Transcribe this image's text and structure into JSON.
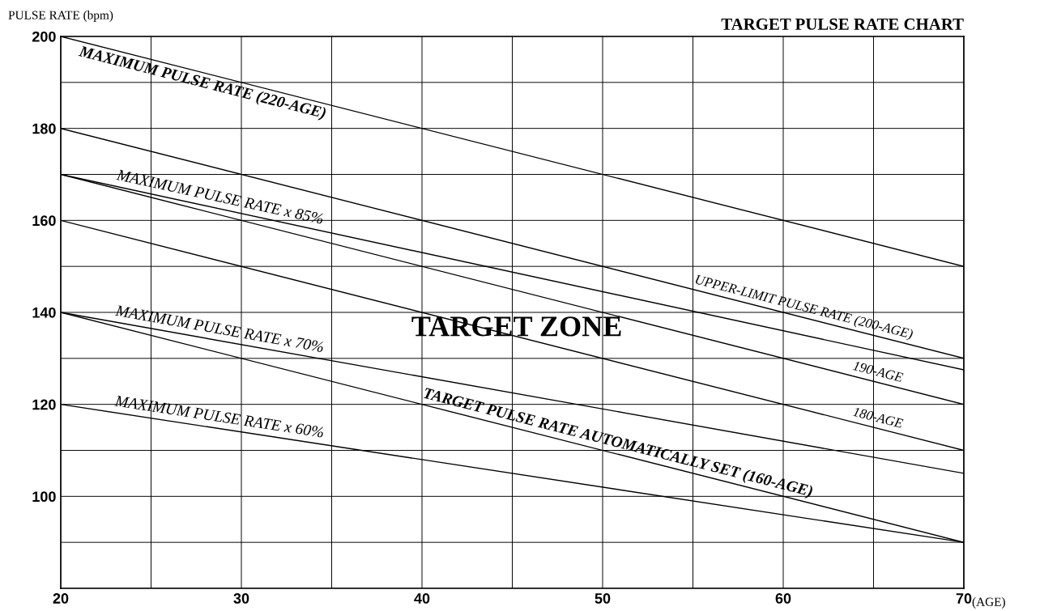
{
  "chart_data": {
    "type": "line",
    "title": "TARGET PULSE RATE CHART",
    "xlabel": "(AGE)",
    "ylabel": "PULSE RATE (bpm)",
    "x": [
      20,
      70
    ],
    "series": [
      {
        "color": "#000000",
        "values": [
          200,
          150
        ]
      },
      {
        "color": "#000000",
        "values": [
          180,
          130
        ]
      },
      {
        "color": "#000000",
        "values": [
          170,
          120
        ]
      },
      {
        "color": "#000000",
        "values": [
          160,
          110
        ]
      },
      {
        "color": "#000000",
        "values": [
          170,
          127.5
        ]
      },
      {
        "color": "#000000",
        "values": [
          140,
          105
        ]
      },
      {
        "color": "#000000",
        "values": [
          120,
          90
        ]
      },
      {
        "color": "#000000",
        "values": [
          140,
          90
        ]
      }
    ],
    "xlim": [
      20,
      70
    ],
    "ylim": [
      80,
      200
    ],
    "xticks": [
      20,
      {
        "value": 25,
        "label": null
      },
      30,
      {
        "value": 35,
        "label": null
      },
      40,
      {
        "value": 45,
        "label": null
      },
      50,
      {
        "value": 55,
        "label": null
      },
      60,
      {
        "value": 65,
        "label": null
      },
      70
    ],
    "yticks": [
      {
        "value": 80,
        "label": null
      },
      {
        "value": 90,
        "label": null
      },
      100,
      {
        "value": 110,
        "label": null
      },
      120,
      {
        "value": 130,
        "label": null
      },
      140,
      {
        "value": 150,
        "label": null
      },
      160,
      {
        "value": 170,
        "label": null
      },
      180,
      {
        "value": 190,
        "label": null
      },
      200
    ],
    "grid": true,
    "marker": "none",
    "line_style": "solid",
    "annotations": [
      {
        "text": "MAXIMUM PULSE RATE (220-AGE)",
        "x": 28,
        "y": 192
      },
      {
        "text": "MAXIMUM PULSE RATE x 85%",
        "x": 28.7,
        "y": 162.6
      },
      {
        "text": "UPPER-LIMIT PULSE RATE (200-AGE)",
        "x": 61,
        "y": 139
      },
      {
        "text": "190-AGE",
        "x": 65.1,
        "y": 124.9
      },
      {
        "text": "180-AGE",
        "x": 65.1,
        "y": 114.9
      },
      {
        "text": "MAXIMUM PULSE RATE x 70%",
        "x": 28.7,
        "y": 133.9
      },
      {
        "text": "TARGET PULSE RATE AUTOMATICALLY SET (160-AGE)",
        "x": 50.7,
        "y": 109.3
      },
      {
        "text": "MAXIMUM PULSE RATE x 60%",
        "x": 28.7,
        "y": 114.8
      },
      "TARGET ZONE"
    ]
  }
}
